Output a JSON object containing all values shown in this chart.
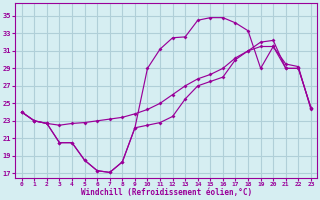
{
  "xlabel": "Windchill (Refroidissement éolien,°C)",
  "bg_color": "#d6eef2",
  "grid_color": "#b0cfd8",
  "line_color": "#990099",
  "x_ticks": [
    0,
    1,
    2,
    3,
    4,
    5,
    6,
    7,
    8,
    9,
    10,
    11,
    12,
    13,
    14,
    15,
    16,
    17,
    18,
    19,
    20,
    21,
    22,
    23
  ],
  "y_ticks": [
    17,
    19,
    21,
    23,
    25,
    27,
    29,
    31,
    33,
    35
  ],
  "xlim": [
    -0.5,
    23.5
  ],
  "ylim": [
    16.5,
    36.5
  ],
  "line1_x": [
    0,
    1,
    2,
    3,
    4,
    5,
    6,
    7,
    8,
    9,
    10,
    11,
    12,
    13,
    14,
    15,
    16,
    17,
    18,
    19,
    20,
    21,
    22,
    23
  ],
  "line1_y": [
    24.0,
    23.0,
    22.7,
    20.5,
    20.5,
    18.5,
    17.3,
    17.1,
    18.3,
    22.2,
    22.5,
    22.8,
    23.5,
    25.5,
    27.0,
    27.5,
    28.0,
    30.0,
    31.0,
    32.0,
    32.2,
    29.0,
    29.0,
    24.5
  ],
  "line2_x": [
    0,
    1,
    2,
    3,
    4,
    5,
    6,
    7,
    8,
    9,
    10,
    11,
    12,
    13,
    14,
    15,
    16,
    17,
    18,
    19,
    20,
    21,
    22,
    23
  ],
  "line2_y": [
    24.0,
    23.0,
    22.7,
    22.5,
    22.7,
    22.8,
    23.0,
    23.2,
    23.4,
    23.8,
    24.3,
    25.0,
    26.0,
    27.0,
    27.8,
    28.3,
    29.0,
    30.2,
    31.0,
    31.5,
    31.5,
    29.5,
    29.2,
    24.3
  ],
  "line3_x": [
    0,
    1,
    2,
    3,
    4,
    5,
    6,
    7,
    8,
    9,
    10,
    11,
    12,
    13,
    14,
    15,
    16,
    17,
    18,
    19,
    20,
    21,
    22,
    23
  ],
  "line3_y": [
    24.0,
    23.0,
    22.7,
    20.5,
    20.5,
    18.5,
    17.3,
    17.1,
    18.3,
    22.2,
    29.0,
    31.2,
    32.5,
    32.6,
    34.5,
    34.8,
    34.8,
    34.2,
    33.3,
    29.0,
    31.5,
    29.0,
    29.0,
    24.5
  ]
}
